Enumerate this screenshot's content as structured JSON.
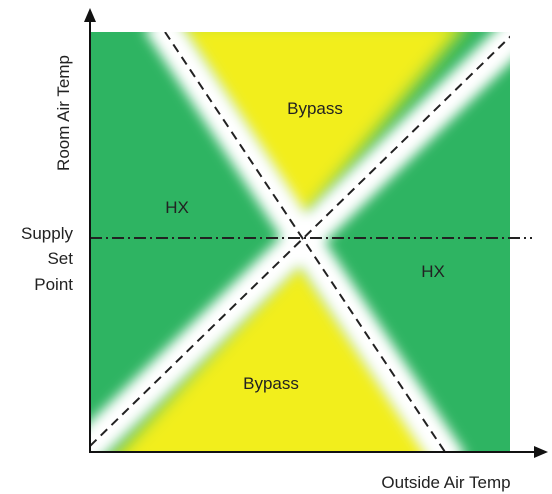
{
  "axes": {
    "y_label": "Room Air Temp",
    "x_label": "Outside Air Temp",
    "setpoint_label": [
      "Supply",
      "Set",
      "Point"
    ]
  },
  "regions": [
    {
      "label": "Bypass"
    },
    {
      "label": "HX"
    },
    {
      "label": "HX"
    },
    {
      "label": "Bypass"
    }
  ]
}
